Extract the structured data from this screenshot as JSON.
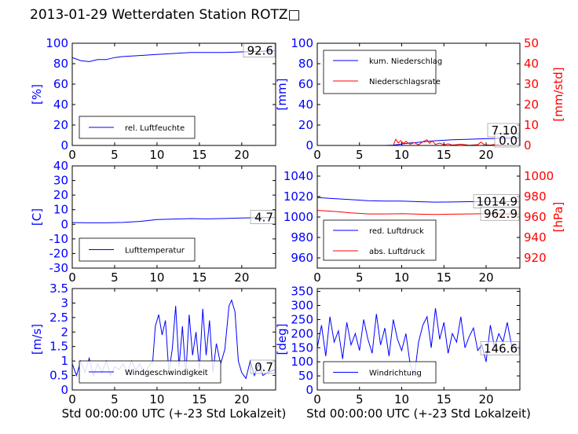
{
  "page": {
    "title": "2013-01-29 Wetterdaten Station ROTZ□"
  },
  "colors": {
    "primary": "#0000ff",
    "secondary": "#ff0000",
    "axis": "#000000"
  },
  "chart_data": [
    {
      "type": "line",
      "panel": "humidity",
      "ylabel": "[%]",
      "ylim": [
        0,
        100
      ],
      "xlim": [
        0,
        24
      ],
      "yticks": [
        0,
        20,
        40,
        60,
        80,
        100
      ],
      "xticks": [
        0,
        5,
        10,
        15,
        20
      ],
      "annotations": [
        "92.6"
      ],
      "legend_placement": "lower-left",
      "series": [
        {
          "name": "rel. Luftfeuchte",
          "color": "#0000ff",
          "x": [
            0,
            1,
            2,
            3,
            4,
            5,
            6,
            8,
            10,
            12,
            14,
            16,
            18,
            20,
            22,
            23.9
          ],
          "y": [
            86,
            83,
            82,
            84,
            84,
            86,
            87,
            88,
            89,
            90,
            91,
            91,
            91,
            91.5,
            92,
            92.6
          ]
        }
      ]
    },
    {
      "type": "line",
      "panel": "precipitation",
      "ylabel": "[mm]",
      "ylim": [
        0,
        100
      ],
      "yticks": [
        0,
        20,
        40,
        60,
        80,
        100
      ],
      "ylabel_right": "[mm/std]",
      "ylim_right": [
        0,
        50
      ],
      "yticks_right": [
        0,
        10,
        20,
        30,
        40,
        50
      ],
      "xlim": [
        0,
        24
      ],
      "xticks": [
        0,
        5,
        10,
        15,
        20
      ],
      "annotations": [
        "7.10",
        "0.0"
      ],
      "legend_placement": "upper-left",
      "series": [
        {
          "name": "kum. Niederschlag",
          "color": "#0000ff",
          "axis": "left",
          "x": [
            0,
            8,
            9,
            10,
            11,
            12,
            13,
            14,
            15,
            16,
            18,
            20,
            22,
            23.9
          ],
          "y": [
            0,
            0,
            0.3,
            1.5,
            2.4,
            3.1,
            3.9,
            4.6,
            5.1,
            5.5,
            6.1,
            6.6,
            7.0,
            7.1
          ]
        },
        {
          "name": "Niederschlagsrate",
          "color": "#ff0000",
          "axis": "right",
          "x": [
            0,
            9.0,
            9.3,
            9.6,
            9.9,
            10.2,
            10.5,
            11.0,
            11.5,
            12.0,
            12.5,
            13.0,
            13.3,
            13.6,
            14.0,
            14.5,
            15.0,
            15.5,
            16.0,
            17.0,
            18.0,
            19.0,
            19.4,
            19.8,
            20.5,
            21.0,
            22.0,
            23.9
          ],
          "y": [
            0,
            0,
            3.0,
            1.2,
            2.4,
            1.0,
            2.0,
            0.6,
            1.4,
            0.3,
            1.8,
            2.8,
            1.0,
            2.2,
            0.5,
            1.2,
            0.3,
            0.8,
            0.2,
            0.6,
            0.1,
            0.4,
            1.6,
            0.3,
            0.2,
            0.5,
            0,
            0
          ]
        }
      ]
    },
    {
      "type": "line",
      "panel": "temperature",
      "ylabel": "[C]",
      "ylim": [
        -30,
        40
      ],
      "xlim": [
        0,
        24
      ],
      "yticks": [
        -30,
        -20,
        -10,
        0,
        10,
        20,
        30,
        40
      ],
      "xticks": [
        0,
        5,
        10,
        15,
        20
      ],
      "annotations": [
        "4.7"
      ],
      "legend_placement": "lower-left",
      "series": [
        {
          "name": "Lufttemperatur",
          "color": "#0000ff",
          "x": [
            0,
            2,
            4,
            6,
            8,
            10,
            12,
            14,
            16,
            18,
            20,
            22,
            23.9
          ],
          "y": [
            1.2,
            1.0,
            1.0,
            1.3,
            2.0,
            3.2,
            3.6,
            3.9,
            3.7,
            4.0,
            4.3,
            4.5,
            4.7
          ]
        }
      ]
    },
    {
      "type": "line",
      "panel": "pressure",
      "ylim": [
        950,
        1050
      ],
      "yticks": [
        960,
        980,
        1000,
        1020,
        1040
      ],
      "ylabel_right": "[hPa]",
      "ylim_right": [
        910,
        1010
      ],
      "yticks_right": [
        920,
        940,
        960,
        980,
        1000
      ],
      "xlim": [
        0,
        24
      ],
      "xticks": [
        0,
        5,
        10,
        15,
        20
      ],
      "annotations": [
        "1014.9",
        "962.9"
      ],
      "legend_placement": "lower-left",
      "series": [
        {
          "name": "red. Luftdruck",
          "color": "#0000ff",
          "axis": "left",
          "x": [
            0,
            2,
            4,
            6,
            8,
            10,
            12,
            14,
            16,
            18,
            20,
            22,
            23.9
          ],
          "y": [
            1019,
            1018,
            1017,
            1016,
            1015.5,
            1015.5,
            1015,
            1014.5,
            1014.7,
            1015,
            1015.2,
            1015.1,
            1014.9
          ]
        },
        {
          "name": "abs. Luftdruck",
          "color": "#ff0000",
          "axis": "right",
          "x": [
            0,
            2,
            4,
            6,
            8,
            10,
            12,
            14,
            16,
            18,
            20,
            22,
            23.9
          ],
          "y": [
            966.5,
            965.5,
            964,
            963,
            963,
            963.2,
            962.8,
            962.5,
            962.8,
            963,
            963.2,
            963.1,
            962.9
          ]
        }
      ]
    },
    {
      "type": "line",
      "panel": "wind_speed",
      "ylabel": "[m/s]",
      "ylim": [
        0,
        3.5
      ],
      "xlim": [
        0,
        24
      ],
      "yticks": [
        0.0,
        0.5,
        1.0,
        1.5,
        2.0,
        2.5,
        3.0,
        3.5
      ],
      "xticks": [
        0,
        5,
        10,
        15,
        20
      ],
      "xlabel": "Std 00:00:00 UTC (+-23 Std Lokalzeit)",
      "annotations": [
        "0.7"
      ],
      "legend_placement": "lower-left",
      "series": [
        {
          "name": "Windgeschwindigkeit",
          "color": "#0000ff",
          "x": [
            0,
            0.5,
            1,
            1.5,
            2,
            2.5,
            3,
            3.5,
            4,
            4.5,
            5,
            5.5,
            6,
            6.5,
            7,
            7.5,
            8,
            8.5,
            9,
            9.5,
            9.8,
            10.2,
            10.6,
            11.0,
            11.4,
            11.8,
            12.2,
            12.6,
            13.0,
            13.4,
            13.8,
            14.2,
            14.6,
            15.0,
            15.4,
            15.8,
            16.2,
            16.6,
            17.0,
            17.5,
            18.0,
            18.5,
            18.8,
            19.2,
            19.6,
            20.0,
            20.5,
            21.0,
            21.5,
            22.0,
            22.5,
            23.0,
            23.9
          ],
          "y": [
            0.9,
            0.5,
            1.0,
            0.6,
            1.1,
            0.5,
            0.9,
            0.6,
            1.0,
            0.5,
            0.8,
            0.7,
            0.9,
            0.6,
            1.0,
            0.7,
            0.9,
            0.5,
            0.8,
            1.0,
            2.2,
            2.6,
            1.9,
            2.4,
            0.6,
            1.4,
            2.9,
            0.8,
            2.2,
            0.5,
            2.6,
            1.2,
            2.0,
            0.7,
            2.8,
            1.2,
            2.4,
            0.6,
            1.6,
            0.9,
            1.4,
            2.9,
            3.1,
            2.7,
            1.0,
            0.6,
            0.4,
            1.0,
            0.5,
            0.9,
            0.5,
            0.6,
            0.7
          ]
        }
      ]
    },
    {
      "type": "line",
      "panel": "wind_direction",
      "ylabel": "[deg]",
      "ylim": [
        0,
        360
      ],
      "xlim": [
        0,
        24
      ],
      "yticks": [
        0,
        50,
        100,
        150,
        200,
        250,
        300,
        350
      ],
      "xticks": [
        0,
        5,
        10,
        15,
        20
      ],
      "xlabel": "Std 00:00:00 UTC (+-23 Std Lokalzeit)",
      "annotations": [
        "146.6"
      ],
      "legend_placement": "lower-left",
      "series": [
        {
          "name": "Windrichtung",
          "color": "#0000ff",
          "x": [
            0,
            0.5,
            1,
            1.5,
            2,
            2.5,
            3,
            3.5,
            4,
            4.5,
            5,
            5.5,
            6,
            6.5,
            7,
            7.5,
            8,
            8.5,
            9,
            9.5,
            10,
            10.5,
            11,
            11.5,
            12,
            12.5,
            13,
            13.5,
            14,
            14.5,
            15,
            15.5,
            16,
            16.5,
            17,
            17.5,
            18,
            18.5,
            19,
            19.5,
            20,
            20.5,
            21,
            21.5,
            22,
            22.5,
            23,
            23.9
          ],
          "y": [
            150,
            230,
            120,
            260,
            170,
            210,
            110,
            240,
            160,
            200,
            140,
            250,
            180,
            130,
            270,
            160,
            220,
            120,
            250,
            180,
            140,
            200,
            90,
            50,
            170,
            230,
            260,
            150,
            290,
            180,
            240,
            130,
            200,
            170,
            260,
            150,
            190,
            220,
            140,
            160,
            100,
            230,
            150,
            200,
            170,
            240,
            160,
            147
          ]
        }
      ]
    }
  ]
}
